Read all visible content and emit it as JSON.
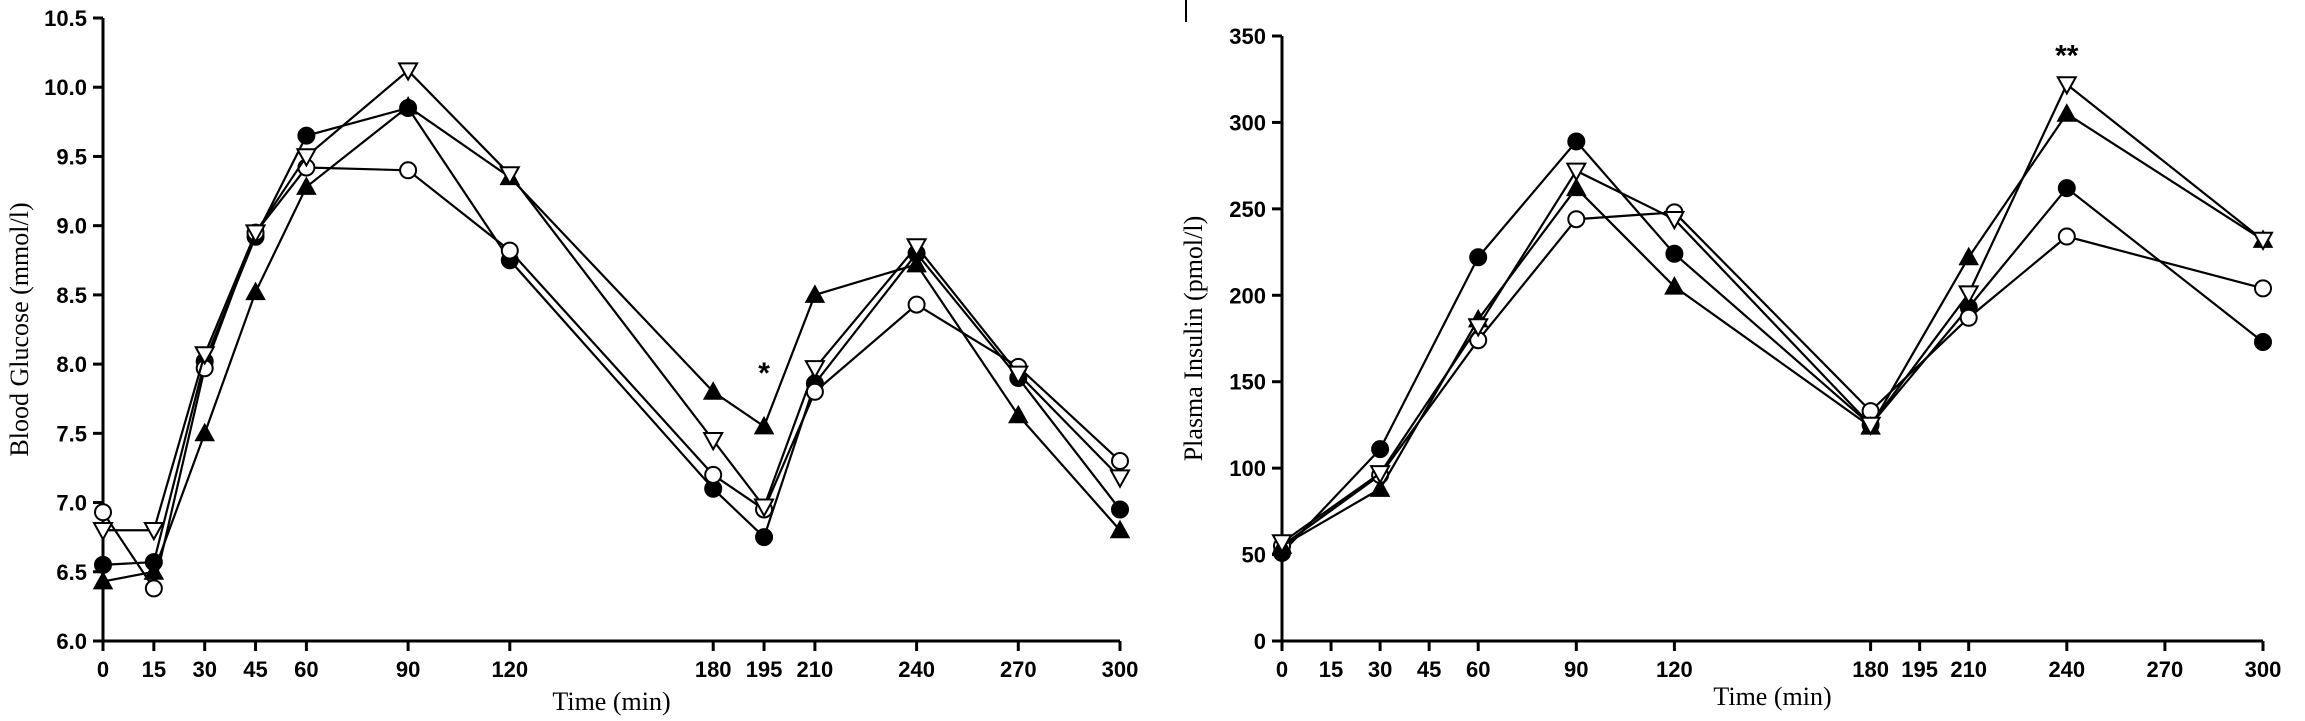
{
  "chart_data": [
    {
      "type": "line",
      "xlabel": "Time (min)",
      "ylabel": "Blood Glucose (mmol/l)",
      "xticks": [
        0,
        15,
        30,
        45,
        60,
        90,
        120,
        180,
        195,
        210,
        240,
        270,
        300
      ],
      "yticks": [
        "6.0",
        "6.5",
        "7.0",
        "7.5",
        "8.0",
        "8.5",
        "9.0",
        "9.5",
        "10.0",
        "10.5"
      ],
      "xlim": [
        0,
        300
      ],
      "ylim": [
        6.0,
        10.5
      ],
      "grid": false,
      "series": [
        {
          "marker": "filled-circle",
          "x": [
            0,
            15,
            30,
            45,
            60,
            90,
            120,
            180,
            195,
            210,
            240,
            270,
            300
          ],
          "values": [
            6.55,
            6.57,
            8.02,
            8.92,
            9.65,
            9.85,
            8.75,
            7.1,
            6.75,
            7.86,
            8.8,
            7.9,
            6.95
          ]
        },
        {
          "marker": "open-circle",
          "x": [
            0,
            15,
            30,
            45,
            60,
            90,
            120,
            180,
            195,
            210,
            240,
            270,
            300
          ],
          "values": [
            6.93,
            6.38,
            7.97,
            8.95,
            9.42,
            9.4,
            8.82,
            7.2,
            6.95,
            7.8,
            8.43,
            7.98,
            7.3
          ]
        },
        {
          "marker": "filled-triangle",
          "x": [
            0,
            15,
            30,
            45,
            60,
            90,
            120,
            180,
            195,
            210,
            240,
            270,
            300
          ],
          "values": [
            6.43,
            6.5,
            7.5,
            8.52,
            9.28,
            9.86,
            9.35,
            7.8,
            7.55,
            8.5,
            8.72,
            7.63,
            6.8
          ]
        },
        {
          "marker": "open-triangle-down",
          "x": [
            0,
            15,
            30,
            45,
            60,
            90,
            120,
            180,
            195,
            210,
            240,
            270,
            300
          ],
          "values": [
            6.8,
            6.8,
            8.07,
            8.95,
            9.5,
            10.12,
            9.37,
            7.45,
            6.97,
            7.97,
            8.85,
            7.93,
            7.18
          ]
        }
      ],
      "annotations": [
        {
          "text": "*",
          "x": 195,
          "y": 7.95
        }
      ]
    },
    {
      "type": "line",
      "xlabel": "Time (min)",
      "ylabel": "Plasma Insulin (pmol/l)",
      "xticks": [
        0,
        15,
        30,
        45,
        60,
        90,
        120,
        180,
        195,
        210,
        240,
        270,
        300
      ],
      "yticks": [
        "0",
        "50",
        "100",
        "150",
        "200",
        "250",
        "300",
        "350"
      ],
      "xlim": [
        0,
        300
      ],
      "ylim": [
        0,
        350
      ],
      "grid": false,
      "series": [
        {
          "marker": "filled-circle",
          "x": [
            0,
            30,
            60,
            90,
            120,
            180,
            210,
            240,
            300
          ],
          "values": [
            51,
            111,
            222,
            289,
            224,
            125,
            193,
            262,
            173
          ]
        },
        {
          "marker": "open-circle",
          "x": [
            0,
            30,
            60,
            90,
            120,
            180,
            210,
            240,
            300
          ],
          "values": [
            55,
            96,
            174,
            244,
            248,
            133,
            187,
            234,
            204
          ]
        },
        {
          "marker": "filled-triangle",
          "x": [
            0,
            30,
            60,
            90,
            120,
            180,
            210,
            240,
            300
          ],
          "values": [
            55,
            88,
            186,
            262,
            205,
            124,
            222,
            305,
            232
          ]
        },
        {
          "marker": "open-triangle-down",
          "x": [
            0,
            30,
            60,
            90,
            120,
            180,
            210,
            240,
            300
          ],
          "values": [
            57,
            97,
            182,
            272,
            244,
            125,
            201,
            322,
            232
          ]
        }
      ],
      "annotations": [
        {
          "text": "**",
          "x": 240,
          "y": 340
        }
      ]
    }
  ]
}
